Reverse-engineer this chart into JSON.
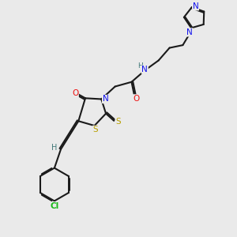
{
  "background_color": "#eaeaea",
  "bond_color": "#1a1a1a",
  "atom_colors": {
    "N": "#1010ee",
    "O": "#ee1010",
    "S": "#b8a000",
    "Cl": "#18b818",
    "H_label": "#407878",
    "C": "#1a1a1a"
  },
  "figsize": [
    3.0,
    3.0
  ],
  "dpi": 100
}
